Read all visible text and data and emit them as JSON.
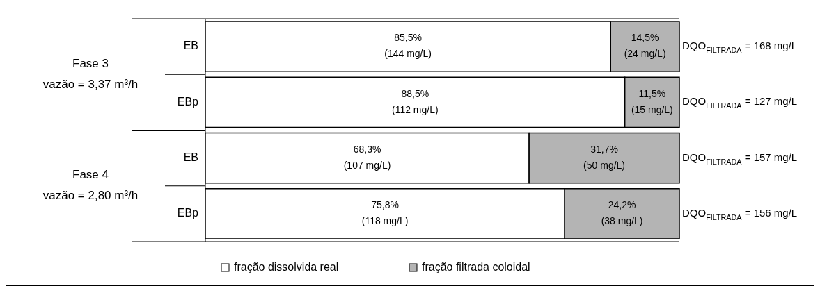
{
  "chart_data": {
    "type": "bar",
    "orientation": "horizontal",
    "stacked": true,
    "categories": [
      "EB",
      "EBp",
      "EB",
      "EBp"
    ],
    "xlim": [
      0,
      100
    ],
    "tick_labels": "y",
    "legend": "bottom",
    "series": [
      {
        "name": "fração dissolvida real",
        "color": "#ffffff",
        "values": [
          85.5,
          88.5,
          68.3,
          75.8
        ],
        "value_labels": [
          "85,5%\n(144 mg/L)",
          "88,5%\n(112 mg/L)",
          "68,3%\n(107 mg/L)",
          "75,8%\n(118 mg/L)"
        ]
      },
      {
        "name": "fração filtrada coloidal",
        "color": "#b4b4b4",
        "values": [
          14.5,
          11.5,
          31.7,
          24.2
        ],
        "value_labels": [
          "14,5%\n(24 mg/L)",
          "11,5%\n(15 mg/L)",
          "31,7%\n(50 mg/L)",
          "24,2%\n(38 mg/L)"
        ]
      }
    ],
    "annotations": [
      "DQO$_{FILTRADA}$ = 168 mg/L",
      "DQO$_{FILTRADA}$ = 127 mg/L",
      "DQO$_{FILTRADA}$ = 157 mg/L",
      "DQO$_{FILTRADA}$ = 156 mg/L",
      "Fase 3\nvazão = 3,37 m³/h",
      "Fase 4\nvazão = 2,80 m³/h"
    ]
  }
}
